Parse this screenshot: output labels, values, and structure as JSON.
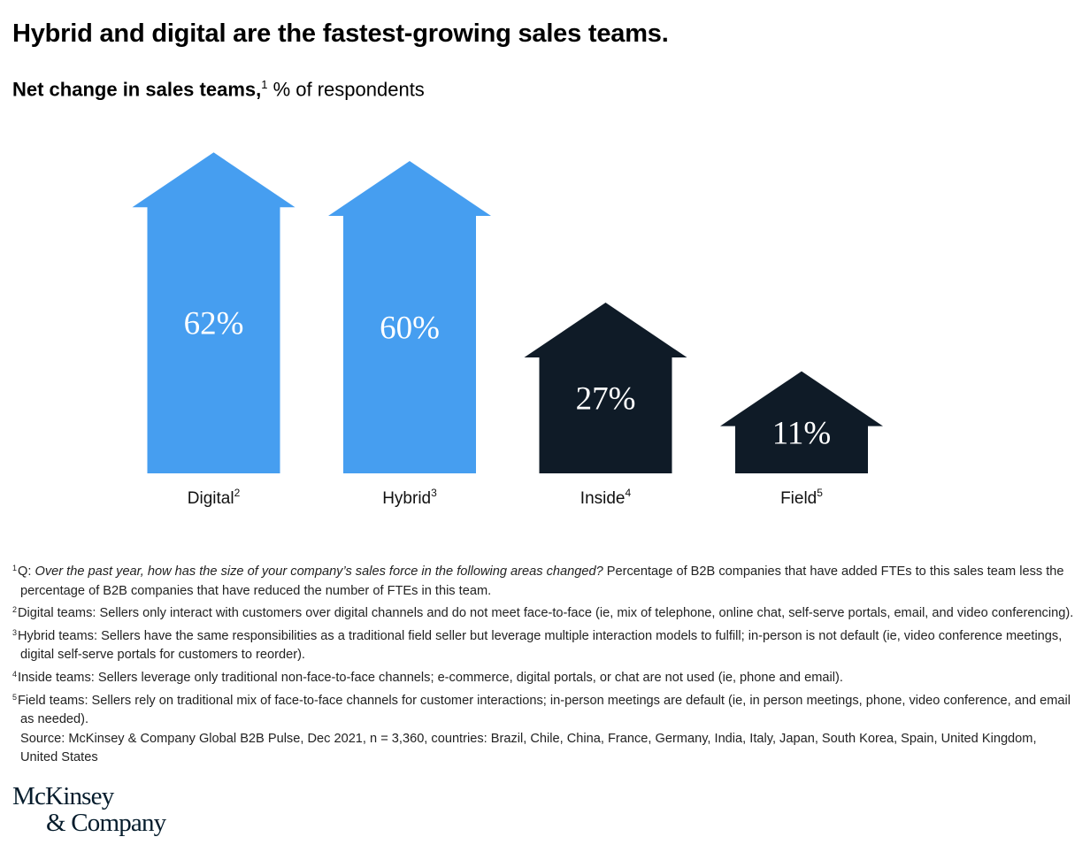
{
  "title": "Hybrid and digital are the fastest-growing sales teams.",
  "subtitle": {
    "bold": "Net change in sales teams,",
    "sup": "1",
    "rest": " % of respondents"
  },
  "chart_data": {
    "type": "bar",
    "title": "Net change in sales teams, % of respondents",
    "categories": [
      "Digital",
      "Hybrid",
      "Inside",
      "Field"
    ],
    "category_sups": [
      "2",
      "3",
      "4",
      "5"
    ],
    "values": [
      62,
      60,
      27,
      11
    ],
    "value_labels": [
      "62%",
      "60%",
      "27%",
      "11%"
    ],
    "colors": [
      "#469ef0",
      "#469ef0",
      "#0f1b27",
      "#0f1b27"
    ],
    "ylim": [
      0,
      70
    ],
    "grid": false,
    "mark_shape": "arrow"
  },
  "footnotes": [
    {
      "sup": "1",
      "prefix": "Q: ",
      "italic": "Over the past year, how has the size of your company’s sales force in the following areas changed?",
      "text": " Percentage of B2B companies that have added FTEs to this sales team less the percentage of B2B companies that have reduced the number of FTEs in this team."
    },
    {
      "sup": "2",
      "prefix": "",
      "italic": "",
      "text": "Digital teams: Sellers only interact with customers over digital channels and do not meet face-to-face (ie, mix of telephone, online chat, self-serve portals, email, and video conferencing)."
    },
    {
      "sup": "3",
      "prefix": "",
      "italic": "",
      "text": "Hybrid teams: Sellers have the same responsibilities as a traditional field seller but leverage multiple interaction models to fulfill; in-person is not default (ie, video conference meetings, digital self-serve portals for customers to reorder)."
    },
    {
      "sup": "4",
      "prefix": "",
      "italic": "",
      "text": "Inside teams: Sellers leverage only traditional non-face-to-face channels; e-commerce, digital portals, or chat are not used (ie, phone and email)."
    },
    {
      "sup": "5",
      "prefix": "",
      "italic": "",
      "text": "Field teams: Sellers rely on traditional mix of face-to-face channels for customer interactions; in-person meetings are default (ie, in person meetings, phone, video conference, and email as needed)."
    }
  ],
  "source": "Source: McKinsey & Company Global B2B Pulse, Dec 2021, n = 3,360, countries: Brazil, Chile, China, France, Germany, India, Italy, Japan, South Korea, Spain, United Kingdom, United States",
  "logo": {
    "line1": "McKinsey",
    "line2": "& Company"
  }
}
